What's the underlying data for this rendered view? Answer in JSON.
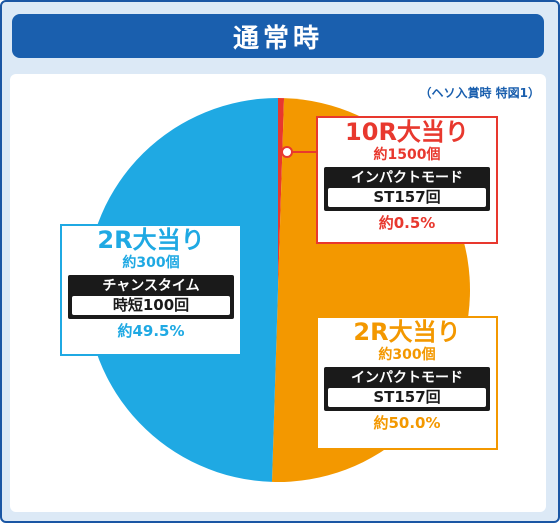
{
  "header": {
    "title": "通常時"
  },
  "note": "（ヘソ入賞時 特図1）",
  "colors": {
    "blue": "#1fa9e3",
    "orange": "#f39800",
    "red": "#e8382e"
  },
  "chart_data": {
    "type": "pie",
    "title": "通常時",
    "subtitle": "（ヘソ入賞時 特図1）",
    "slices": [
      {
        "title": "10R大当り",
        "count": "約1500個",
        "mode": "インパクトモード",
        "mode_value": "ST157回",
        "percent_label": "約0.5%",
        "value": 0.5,
        "color": "#e8382e"
      },
      {
        "title": "2R大当り",
        "count": "約300個",
        "mode": "インパクトモード",
        "mode_value": "ST157回",
        "percent_label": "約50.0%",
        "value": 50.0,
        "color": "#f39800"
      },
      {
        "title": "2R大当り",
        "count": "約300個",
        "mode": "チャンスタイム",
        "mode_value": "時短100回",
        "percent_label": "約49.5%",
        "value": 49.5,
        "color": "#1fa9e3"
      }
    ]
  }
}
